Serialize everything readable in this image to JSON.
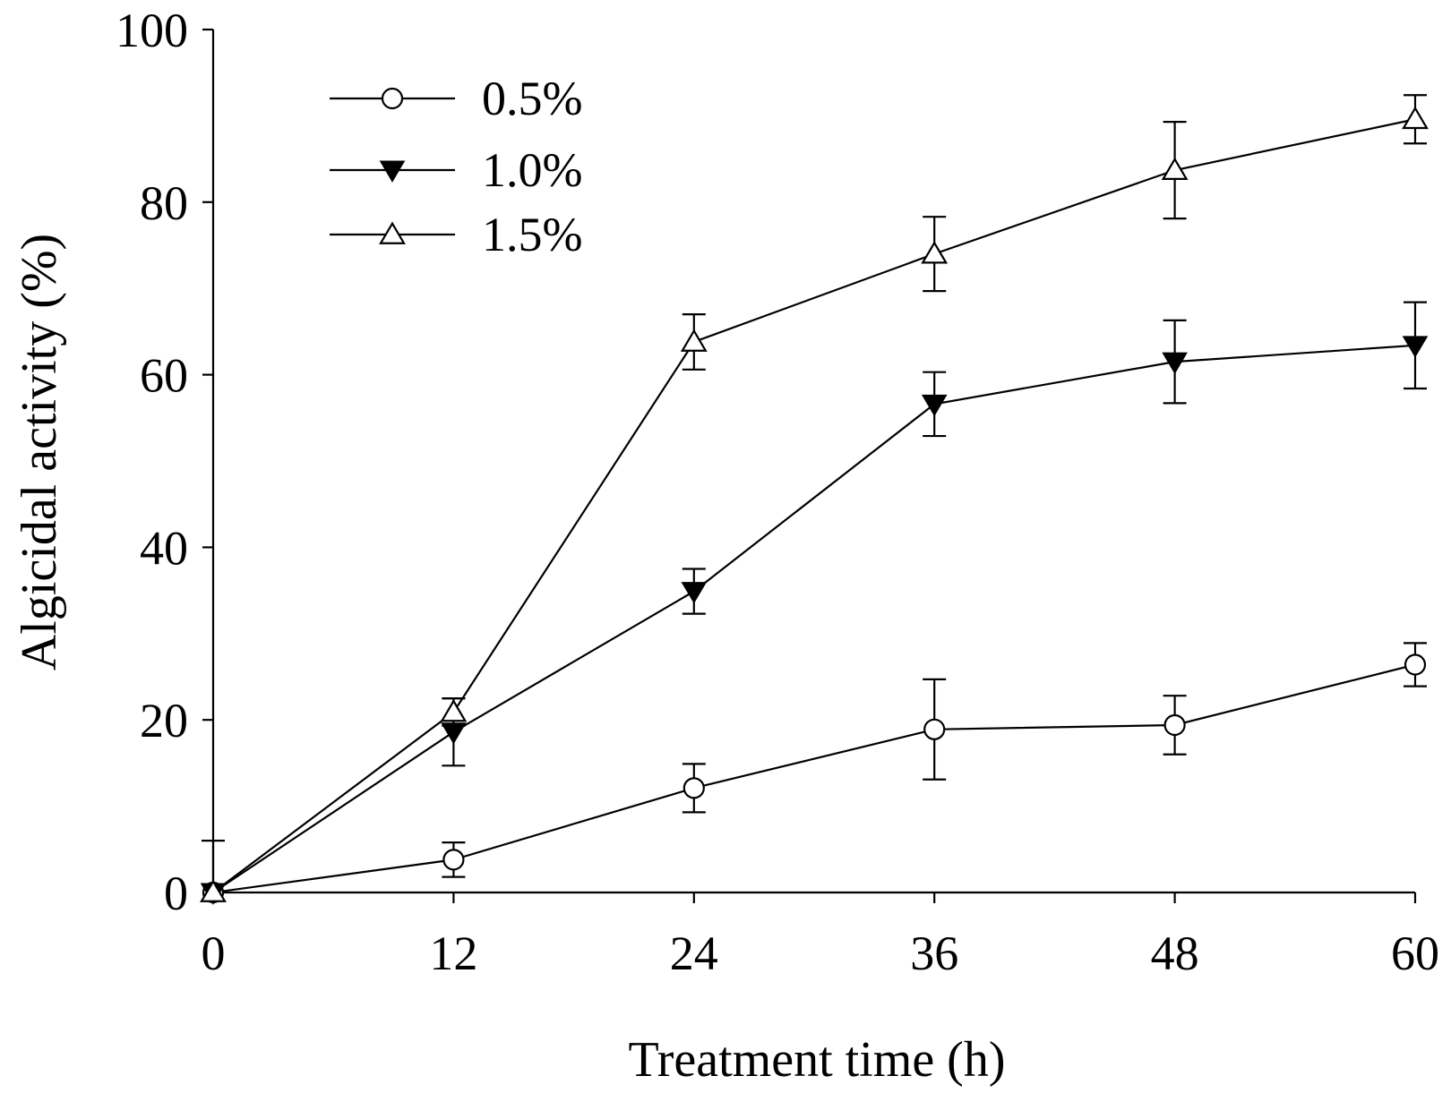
{
  "chart_data": {
    "type": "line",
    "title": "",
    "xlabel": "Treatment time (h)",
    "ylabel": "Algicidal activity (%)",
    "x": [
      0,
      12,
      24,
      36,
      48,
      60
    ],
    "xlim": [
      0,
      60
    ],
    "ylim": [
      0,
      100
    ],
    "xticks": [
      0,
      12,
      24,
      36,
      48,
      60
    ],
    "yticks": [
      0,
      20,
      40,
      60,
      80,
      100
    ],
    "grid": false,
    "legend_position": "top-left",
    "series": [
      {
        "name": "0.5%",
        "marker": "open-circle",
        "values": [
          0,
          3.8,
          12.1,
          18.9,
          19.4,
          26.4
        ],
        "errors": [
          6.0,
          2.0,
          2.8,
          5.8,
          3.4,
          2.5
        ]
      },
      {
        "name": "1.0%",
        "marker": "filled-triangle-down",
        "values": [
          0,
          18.6,
          34.9,
          56.6,
          61.5,
          63.4
        ],
        "errors": [
          0,
          3.9,
          2.6,
          3.7,
          4.8,
          5.0
        ]
      },
      {
        "name": "1.5%",
        "marker": "open-triangle-up",
        "values": [
          0,
          20.9,
          63.8,
          74.0,
          83.7,
          89.6
        ],
        "errors": [
          0,
          1.6,
          3.2,
          4.3,
          5.6,
          2.8
        ]
      }
    ]
  }
}
